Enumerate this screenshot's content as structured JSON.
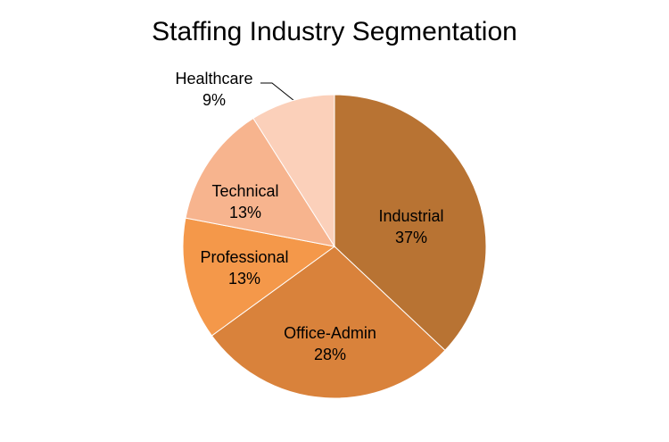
{
  "chart_data": {
    "type": "pie",
    "title": "Staffing Industry Segmentation",
    "categories": [
      "Industrial",
      "Office-Admin",
      "Professional",
      "Technical",
      "Healthcare"
    ],
    "values": [
      37,
      28,
      13,
      13,
      9
    ],
    "value_labels": [
      "37%",
      "28%",
      "13%",
      "13%",
      "9%"
    ],
    "colors": [
      "#b87333",
      "#d9823b",
      "#f4984a",
      "#f7b48e",
      "#fbd0ba"
    ]
  }
}
